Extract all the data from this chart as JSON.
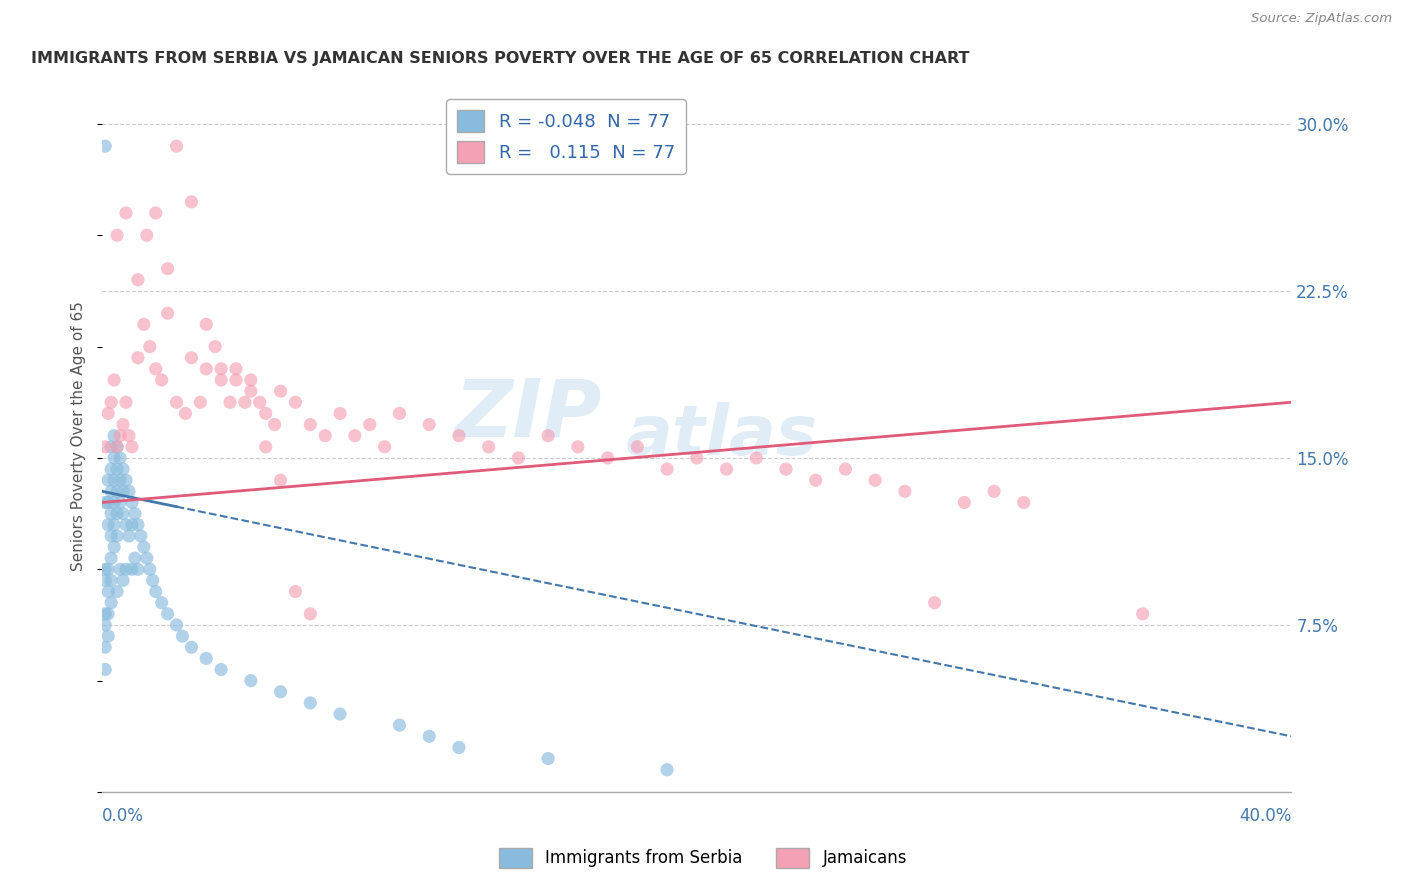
{
  "title": "IMMIGRANTS FROM SERBIA VS JAMAICAN SENIORS POVERTY OVER THE AGE OF 65 CORRELATION CHART",
  "source": "Source: ZipAtlas.com",
  "ylabel": "Seniors Poverty Over the Age of 65",
  "yticks": [
    0.0,
    0.075,
    0.15,
    0.225,
    0.3
  ],
  "xmin": 0.0,
  "xmax": 0.4,
  "ymin": 0.0,
  "ymax": 0.32,
  "legend_r_blue": "-0.048",
  "legend_r_pink": "0.115",
  "legend_n": "77",
  "blue_color": "#88bbdd",
  "pink_color": "#f4a0b5",
  "blue_line_color": "#4477aa",
  "pink_line_color": "#e05a7a",
  "watermark_zip": "ZIP",
  "watermark_atlas": "atlas",
  "blue_x": [
    0.001,
    0.001,
    0.001,
    0.001,
    0.001,
    0.001,
    0.001,
    0.002,
    0.002,
    0.002,
    0.002,
    0.002,
    0.002,
    0.002,
    0.003,
    0.003,
    0.003,
    0.003,
    0.003,
    0.003,
    0.003,
    0.003,
    0.004,
    0.004,
    0.004,
    0.004,
    0.004,
    0.004,
    0.005,
    0.005,
    0.005,
    0.005,
    0.005,
    0.005,
    0.006,
    0.006,
    0.006,
    0.006,
    0.007,
    0.007,
    0.007,
    0.007,
    0.008,
    0.008,
    0.008,
    0.009,
    0.009,
    0.01,
    0.01,
    0.01,
    0.011,
    0.011,
    0.012,
    0.012,
    0.013,
    0.014,
    0.015,
    0.016,
    0.017,
    0.018,
    0.02,
    0.022,
    0.025,
    0.027,
    0.03,
    0.035,
    0.04,
    0.05,
    0.06,
    0.07,
    0.08,
    0.1,
    0.11,
    0.12,
    0.15,
    0.19,
    0.001
  ],
  "blue_y": [
    0.13,
    0.095,
    0.1,
    0.08,
    0.075,
    0.065,
    0.055,
    0.14,
    0.13,
    0.12,
    0.1,
    0.09,
    0.08,
    0.07,
    0.155,
    0.145,
    0.135,
    0.125,
    0.115,
    0.105,
    0.095,
    0.085,
    0.16,
    0.15,
    0.14,
    0.13,
    0.12,
    0.11,
    0.155,
    0.145,
    0.135,
    0.125,
    0.115,
    0.09,
    0.15,
    0.14,
    0.13,
    0.1,
    0.145,
    0.135,
    0.125,
    0.095,
    0.14,
    0.12,
    0.1,
    0.135,
    0.115,
    0.13,
    0.12,
    0.1,
    0.125,
    0.105,
    0.12,
    0.1,
    0.115,
    0.11,
    0.105,
    0.1,
    0.095,
    0.09,
    0.085,
    0.08,
    0.075,
    0.07,
    0.065,
    0.06,
    0.055,
    0.05,
    0.045,
    0.04,
    0.035,
    0.03,
    0.025,
    0.02,
    0.015,
    0.01,
    0.29
  ],
  "pink_x": [
    0.001,
    0.002,
    0.003,
    0.004,
    0.005,
    0.006,
    0.007,
    0.008,
    0.009,
    0.01,
    0.012,
    0.014,
    0.016,
    0.018,
    0.02,
    0.022,
    0.025,
    0.028,
    0.03,
    0.033,
    0.035,
    0.038,
    0.04,
    0.043,
    0.045,
    0.048,
    0.05,
    0.053,
    0.055,
    0.058,
    0.06,
    0.065,
    0.07,
    0.075,
    0.08,
    0.085,
    0.09,
    0.095,
    0.1,
    0.11,
    0.12,
    0.13,
    0.14,
    0.15,
    0.16,
    0.17,
    0.18,
    0.19,
    0.2,
    0.21,
    0.22,
    0.23,
    0.24,
    0.25,
    0.26,
    0.27,
    0.28,
    0.29,
    0.3,
    0.31,
    0.005,
    0.008,
    0.012,
    0.015,
    0.018,
    0.022,
    0.025,
    0.03,
    0.035,
    0.04,
    0.045,
    0.05,
    0.055,
    0.06,
    0.065,
    0.07,
    0.35
  ],
  "pink_y": [
    0.155,
    0.17,
    0.175,
    0.185,
    0.155,
    0.16,
    0.165,
    0.175,
    0.16,
    0.155,
    0.195,
    0.21,
    0.2,
    0.19,
    0.185,
    0.215,
    0.175,
    0.17,
    0.195,
    0.175,
    0.19,
    0.2,
    0.185,
    0.175,
    0.19,
    0.175,
    0.185,
    0.175,
    0.17,
    0.165,
    0.18,
    0.175,
    0.165,
    0.16,
    0.17,
    0.16,
    0.165,
    0.155,
    0.17,
    0.165,
    0.16,
    0.155,
    0.15,
    0.16,
    0.155,
    0.15,
    0.155,
    0.145,
    0.15,
    0.145,
    0.15,
    0.145,
    0.14,
    0.145,
    0.14,
    0.135,
    0.085,
    0.13,
    0.135,
    0.13,
    0.25,
    0.26,
    0.23,
    0.25,
    0.26,
    0.235,
    0.29,
    0.265,
    0.21,
    0.19,
    0.185,
    0.18,
    0.155,
    0.14,
    0.09,
    0.08,
    0.08
  ],
  "blue_trendline_x": [
    0.0,
    0.4
  ],
  "blue_trendline_y": [
    0.135,
    0.025
  ],
  "pink_trendline_x": [
    0.0,
    0.4
  ],
  "pink_trendline_y": [
    0.13,
    0.175
  ]
}
